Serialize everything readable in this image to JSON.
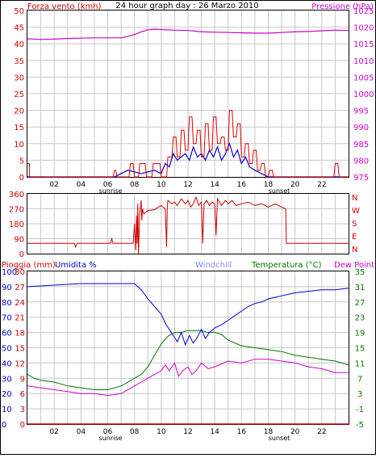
{
  "colors": {
    "wind": "#dd0000",
    "gust": "#0000cc",
    "pressure": "#cc00cc",
    "direction": "#cc0000",
    "rain": "#cc0000",
    "humidity": "#0000cc",
    "windchill": "#8888ff",
    "temperature": "#007700",
    "dewpoint": "#cc00cc",
    "grid": "#c8c8c8",
    "axis": "#000000"
  },
  "chart_data": [
    {
      "type": "line",
      "title": "24 hour graph day : 26 Marzo 2010",
      "left_label": "Forza vento (kmh)",
      "right_label": "Pressione (hPa)",
      "x_ticks": [
        "02",
        "04",
        "06",
        "08",
        "10",
        "12",
        "14",
        "16",
        "18",
        "20",
        "22"
      ],
      "sunrise_label": "sunrise",
      "sunset_label": "sunset",
      "xlim": [
        0,
        24
      ],
      "ylim_left": [
        0,
        50
      ],
      "ylim_right": [
        975,
        1025
      ],
      "y_ticks_left": [
        0,
        5,
        10,
        15,
        20,
        25,
        30,
        35,
        40,
        45,
        50
      ],
      "y_ticks_right": [
        975,
        980,
        985,
        990,
        995,
        1000,
        1005,
        1010,
        1015,
        1020,
        1025
      ],
      "series": [
        {
          "axis": "right",
          "x": [
            0,
            1,
            2,
            3,
            4,
            5,
            6,
            7,
            7.5,
            8,
            8.5,
            9,
            9.5,
            10,
            11,
            12,
            13,
            14,
            15,
            16,
            17,
            18,
            19,
            20,
            21,
            22,
            23,
            24
          ],
          "values": [
            1016.5,
            1016.3,
            1016.4,
            1016.6,
            1016.7,
            1016.8,
            1016.8,
            1016.8,
            1017.2,
            1017.8,
            1018.6,
            1019.2,
            1019.4,
            1019.3,
            1019.1,
            1019.0,
            1018.6,
            1018.5,
            1018.4,
            1018.3,
            1018.2,
            1018.2,
            1018.4,
            1018.6,
            1018.7,
            1018.9,
            1019.1,
            1019.0
          ]
        },
        {
          "axis": "left",
          "x": [
            0,
            0.15,
            0.16,
            6.4,
            6.5,
            6.6,
            6.7,
            7.6,
            7.7,
            7.9,
            8.0,
            8.3,
            8.4,
            8.8,
            8.9,
            9.3,
            9.4,
            9.9,
            10.0,
            10.4,
            10.5,
            10.8,
            10.9,
            11.1,
            11.2,
            11.4,
            11.5,
            11.7,
            11.8,
            12.0,
            12.1,
            12.3,
            12.4,
            12.6,
            12.7,
            12.9,
            13.0,
            13.2,
            13.3,
            13.5,
            13.6,
            13.8,
            13.9,
            14.1,
            14.2,
            14.4,
            14.5,
            14.7,
            14.8,
            15.0,
            15.1,
            15.3,
            15.4,
            15.6,
            15.7,
            15.9,
            16.0,
            16.2,
            16.3,
            16.5,
            16.6,
            16.8,
            16.9,
            17.1,
            17.2,
            17.4,
            17.5,
            17.7,
            17.8,
            18.0,
            18.1,
            18.3,
            18.4,
            22.9,
            23.0,
            23.2,
            23.3,
            24
          ],
          "values": [
            4,
            4,
            0,
            0,
            2,
            2,
            0,
            0,
            4,
            4,
            0,
            0,
            4,
            4,
            0,
            0,
            4,
            4,
            0,
            0,
            6,
            6,
            12,
            12,
            6,
            6,
            14,
            14,
            8,
            8,
            18,
            18,
            10,
            10,
            14,
            14,
            6,
            6,
            16,
            16,
            8,
            8,
            18,
            18,
            10,
            10,
            12,
            12,
            8,
            8,
            20,
            20,
            12,
            12,
            16,
            16,
            6,
            6,
            10,
            10,
            4,
            4,
            8,
            8,
            2,
            2,
            4,
            4,
            0,
            0,
            2,
            2,
            0,
            0,
            4,
            4,
            0,
            0
          ]
        },
        {
          "axis": "left",
          "x": [
            0,
            6.5,
            7.5,
            8.5,
            9.5,
            10,
            10.3,
            10.6,
            10.9,
            11.2,
            11.5,
            11.8,
            12.1,
            12.4,
            12.7,
            13.0,
            13.3,
            13.6,
            13.9,
            14.2,
            14.5,
            14.8,
            15.1,
            15.4,
            15.7,
            16.0,
            16.3,
            16.6,
            17.0,
            17.5,
            18.0,
            24
          ],
          "values": [
            0,
            0,
            2,
            1,
            2,
            1,
            4,
            3,
            7,
            5,
            6,
            7,
            5,
            9,
            6,
            7,
            5,
            8,
            6,
            9,
            5,
            7,
            10,
            6,
            8,
            4,
            6,
            3,
            2,
            1,
            0,
            0
          ]
        }
      ]
    },
    {
      "type": "line",
      "right_labels": [
        "N",
        "W",
        "S",
        "E",
        "N"
      ],
      "xlim": [
        0,
        24
      ],
      "ylim": [
        0,
        360
      ],
      "y_ticks": [
        0,
        90,
        180,
        270,
        360
      ],
      "series": [
        {
          "x": [
            0,
            3.5,
            3.6,
            3.7,
            5,
            6.2,
            6.3,
            6.4,
            6.5,
            7.5,
            7.9,
            8.0,
            8.1,
            8.15,
            8.2,
            8.25,
            8.3,
            8.4,
            8.5,
            8.55,
            8.6,
            8.7,
            9.0,
            9.5,
            10.0,
            10.3,
            10.4,
            10.45,
            10.5,
            10.8,
            11.0,
            11.2,
            11.5,
            11.8,
            12.0,
            12.2,
            12.4,
            12.6,
            12.8,
            13.0,
            13.1,
            13.2,
            13.4,
            13.6,
            13.8,
            14.0,
            14.1,
            14.2,
            14.5,
            14.8,
            15.0,
            15.3,
            15.6,
            16.0,
            16.5,
            17.0,
            17.5,
            18.0,
            18.5,
            19.0,
            19.3,
            19.35,
            24
          ],
          "values": [
            62,
            62,
            40,
            62,
            62,
            62,
            90,
            62,
            62,
            62,
            62,
            180,
            20,
            230,
            60,
            300,
            0,
            250,
            320,
            200,
            270,
            240,
            260,
            265,
            290,
            270,
            40,
            280,
            320,
            300,
            310,
            290,
            330,
            300,
            320,
            280,
            300,
            340,
            290,
            310,
            60,
            300,
            320,
            290,
            310,
            300,
            110,
            330,
            290,
            320,
            300,
            320,
            290,
            300,
            310,
            290,
            300,
            280,
            300,
            280,
            270,
            62,
            62
          ]
        }
      ]
    },
    {
      "type": "line",
      "left_labels": [
        "Pioggia (mm)",
        "Umidita %"
      ],
      "center_label": "Windchill",
      "right_labels": [
        "Temperatura (°C)",
        "Dew Point"
      ],
      "x_ticks": [
        "02",
        "04",
        "06",
        "08",
        "10",
        "12",
        "14",
        "16",
        "18",
        "20",
        "22"
      ],
      "sunrise_label": "sunrise",
      "sunset_label": "sunset",
      "xlim": [
        0,
        24
      ],
      "y_ticks_humidity": [
        0,
        10,
        20,
        30,
        40,
        50,
        60,
        70,
        80,
        90,
        100
      ],
      "y_ticks_rain": [
        0,
        3,
        6,
        9,
        12,
        15,
        18,
        21,
        24,
        27,
        30
      ],
      "y_ticks_temp": [
        -5,
        -1,
        3,
        7,
        11,
        15,
        19,
        23,
        27,
        31,
        35
      ],
      "series": [
        {
          "name": "Umidita %",
          "axis": "humidity",
          "x": [
            0,
            2,
            4,
            5,
            6,
            7,
            8,
            8.5,
            9,
            9.5,
            10,
            10.3,
            10.6,
            10.9,
            11.2,
            11.5,
            11.8,
            12.1,
            12.4,
            12.7,
            13.0,
            13.3,
            13.6,
            14,
            14.5,
            15,
            15.5,
            16,
            16.5,
            17,
            17.5,
            18,
            18.5,
            19,
            19.5,
            20,
            21,
            22,
            23,
            24
          ],
          "values": [
            90,
            91,
            92,
            92,
            92,
            92,
            92,
            88,
            82,
            77,
            72,
            66,
            62,
            58,
            54,
            60,
            52,
            58,
            53,
            57,
            62,
            56,
            60,
            63,
            65,
            68,
            71,
            74,
            77,
            79,
            80,
            82,
            83,
            84,
            85,
            86,
            87,
            88,
            88,
            89
          ]
        },
        {
          "name": "Temperatura (°C)",
          "axis": "temp",
          "x": [
            0,
            0.5,
            1,
            2,
            3,
            4,
            5,
            6,
            7,
            8,
            8.5,
            9,
            9.5,
            10,
            10.5,
            11,
            11.5,
            12,
            12.5,
            13,
            13.5,
            14,
            14.5,
            15,
            16,
            17,
            18,
            19,
            20,
            21,
            22,
            23,
            24
          ],
          "values": [
            8,
            7,
            6.5,
            6,
            5,
            4.5,
            4,
            4,
            5,
            7,
            8,
            10,
            13,
            16,
            18,
            19,
            19,
            19.5,
            19.5,
            19.5,
            19,
            19,
            18.5,
            17,
            15.5,
            15,
            14.5,
            14,
            13,
            12.5,
            12,
            11.5,
            10.5
          ]
        },
        {
          "name": "Dew Point",
          "axis": "temp",
          "x": [
            0,
            1,
            2,
            3,
            4,
            5,
            6,
            7,
            8,
            8.5,
            9,
            9.5,
            10,
            10.3,
            10.6,
            11,
            11.3,
            11.6,
            12,
            12.3,
            12.6,
            13,
            13.5,
            14,
            15,
            16,
            17,
            18,
            19,
            20,
            21,
            22,
            23,
            24
          ],
          "values": [
            5,
            4.5,
            4,
            3.5,
            3,
            3,
            2.5,
            3,
            5,
            6,
            7,
            8,
            9,
            10.5,
            9,
            11,
            7.5,
            9,
            10,
            8,
            9,
            11,
            9.5,
            10,
            11.5,
            11,
            12,
            12,
            11.5,
            11,
            10,
            9.5,
            8.5,
            8.5
          ]
        },
        {
          "name": "Pioggia (mm)",
          "axis": "rain",
          "x": [
            0,
            24
          ],
          "values": [
            0,
            0
          ]
        }
      ]
    }
  ]
}
